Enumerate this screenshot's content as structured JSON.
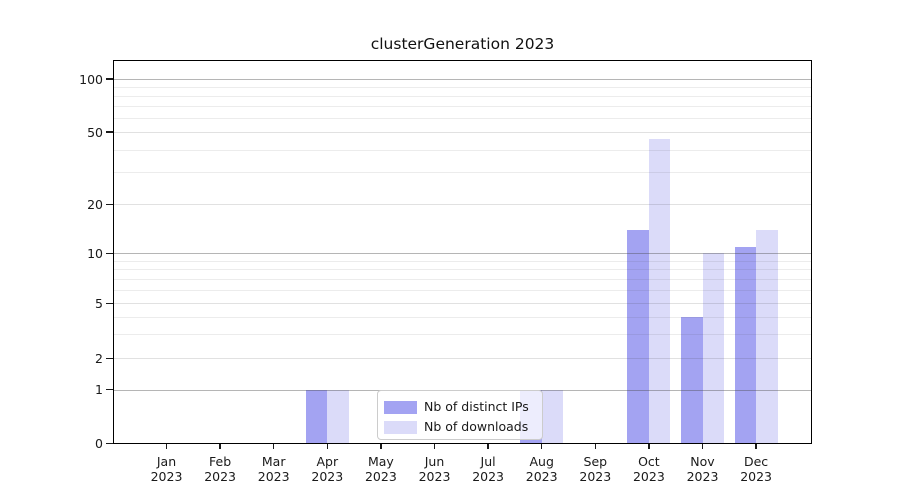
{
  "chart_data": {
    "type": "bar",
    "title": "clusterGeneration 2023",
    "categories": [
      "Jan",
      "Feb",
      "Mar",
      "Apr",
      "May",
      "Jun",
      "Jul",
      "Aug",
      "Sep",
      "Oct",
      "Nov",
      "Dec"
    ],
    "year": "2023",
    "series": [
      {
        "name": "Nb of distinct IPs",
        "color": "#a3a3f2",
        "values": [
          0,
          0,
          0,
          1,
          0,
          0,
          0,
          1,
          0,
          14,
          4,
          11
        ]
      },
      {
        "name": "Nb of downloads",
        "color": "#dbdbf9",
        "values": [
          0,
          0,
          0,
          1,
          0,
          0,
          0,
          1,
          0,
          46,
          10,
          14
        ]
      }
    ],
    "xlabel": "",
    "ylabel": "",
    "y_axis": {
      "scale": "symlog",
      "ticks": [
        0,
        1,
        2,
        5,
        10,
        20,
        50,
        100
      ],
      "range": [
        0,
        130
      ],
      "minor_gridlines": [
        3,
        4,
        6,
        7,
        8,
        9,
        30,
        40,
        60,
        70,
        80,
        90
      ]
    },
    "grid": true,
    "legend_position": "lower center, inside plot"
  }
}
